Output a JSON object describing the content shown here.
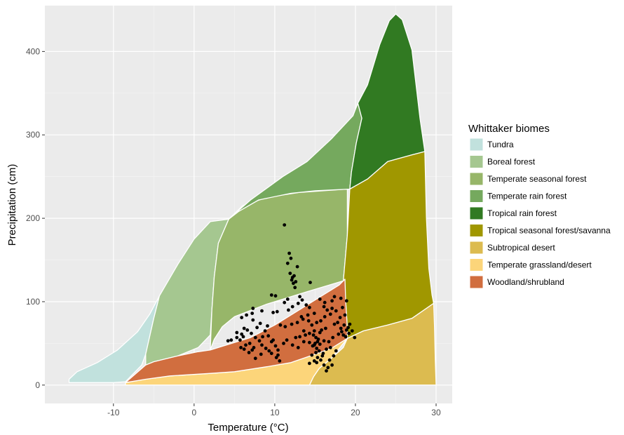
{
  "chart_data": {
    "type": "scatter",
    "title": "",
    "xlabel": "Temperature (°C)",
    "ylabel": "Precipitation (cm)",
    "xlim": [
      -18.5,
      32
    ],
    "ylim": [
      -22,
      455
    ],
    "x_ticks": [
      -10,
      0,
      10,
      20,
      30
    ],
    "y_ticks": [
      0,
      100,
      200,
      300,
      400
    ],
    "x_tick_labels": [
      "-10",
      "0",
      "10",
      "20",
      "30"
    ],
    "y_tick_labels": [
      "0",
      "100",
      "200",
      "300",
      "400"
    ],
    "grid": true,
    "background": "#EBEBEB",
    "legend": {
      "title": "Whittaker biomes",
      "placement": "right",
      "entries": [
        {
          "name": "Tundra",
          "color": "#C1E1DD"
        },
        {
          "name": "Boreal forest",
          "color": "#A5C790"
        },
        {
          "name": "Temperate seasonal forest",
          "color": "#97B669"
        },
        {
          "name": "Temperate rain forest",
          "color": "#75A95E"
        },
        {
          "name": "Tropical rain forest",
          "color": "#317A22"
        },
        {
          "name": "Tropical seasonal forest/savanna",
          "color": "#A09700"
        },
        {
          "name": "Subtropical desert",
          "color": "#DCBB50"
        },
        {
          "name": "Temperate grassland/desert",
          "color": "#FCD57A"
        },
        {
          "name": "Woodland/shrubland",
          "color": "#D16E3F"
        }
      ]
    },
    "biomes": [
      {
        "name": "Tundra",
        "color": "#C1E1DD",
        "points": [
          [
            -15.5,
            7
          ],
          [
            -14.5,
            16
          ],
          [
            -12,
            27
          ],
          [
            -9.5,
            42
          ],
          [
            -7,
            64
          ],
          [
            -5.5,
            85
          ],
          [
            -4.3,
            107
          ],
          [
            -5,
            80
          ],
          [
            -6,
            37
          ],
          [
            -6.5,
            24
          ],
          [
            -8.5,
            4
          ],
          [
            -10,
            3
          ],
          [
            -13,
            3
          ],
          [
            -15.5,
            3
          ]
        ]
      },
      {
        "name": "Boreal forest",
        "color": "#A5C790",
        "points": [
          [
            -4.3,
            107
          ],
          [
            -2,
            145
          ],
          [
            0,
            175
          ],
          [
            2,
            196
          ],
          [
            4.3,
            199
          ],
          [
            3,
            170
          ],
          [
            2.5,
            130
          ],
          [
            2.2,
            90
          ],
          [
            2,
            60
          ],
          [
            0.5,
            45
          ],
          [
            -2,
            35
          ],
          [
            -5,
            28
          ],
          [
            -6,
            24
          ],
          [
            -6,
            37
          ],
          [
            -5,
            80
          ]
        ]
      },
      {
        "name": "Temperate seasonal forest",
        "color": "#97B669",
        "points": [
          [
            4.3,
            199
          ],
          [
            6,
            215
          ],
          [
            9,
            225
          ],
          [
            13,
            231
          ],
          [
            19,
            235
          ],
          [
            19,
            180
          ],
          [
            18.5,
            125
          ],
          [
            14,
            112
          ],
          [
            9,
            97
          ],
          [
            5,
            82
          ],
          [
            3.5,
            70
          ],
          [
            2.5,
            55
          ],
          [
            2,
            42
          ],
          [
            2.2,
            90
          ],
          [
            2.5,
            130
          ],
          [
            3,
            170
          ]
        ]
      },
      {
        "name": "Temperate rain forest",
        "color": "#75A95E",
        "points": [
          [
            4.3,
            199
          ],
          [
            7,
            222
          ],
          [
            11,
            250
          ],
          [
            14,
            268
          ],
          [
            17,
            295
          ],
          [
            19.7,
            323
          ],
          [
            20.3,
            338
          ],
          [
            20.8,
            320
          ],
          [
            20.1,
            290
          ],
          [
            19.5,
            255
          ],
          [
            19.3,
            235
          ],
          [
            15,
            233
          ],
          [
            12,
            230
          ],
          [
            8,
            222
          ],
          [
            5.5,
            208
          ]
        ]
      },
      {
        "name": "Tropical rain forest",
        "color": "#317A22",
        "points": [
          [
            20.3,
            338
          ],
          [
            21.5,
            360
          ],
          [
            23,
            408
          ],
          [
            24.2,
            437
          ],
          [
            25,
            445
          ],
          [
            25.8,
            438
          ],
          [
            27,
            402
          ],
          [
            28,
            320
          ],
          [
            28.6,
            280
          ],
          [
            27,
            276
          ],
          [
            24,
            268
          ],
          [
            21.5,
            247
          ],
          [
            19.3,
            235
          ],
          [
            19.5,
            255
          ],
          [
            20.1,
            290
          ],
          [
            20.8,
            320
          ]
        ]
      },
      {
        "name": "Tropical seasonal forest/savanna",
        "color": "#A09700",
        "points": [
          [
            19.3,
            235
          ],
          [
            21.5,
            247
          ],
          [
            24,
            268
          ],
          [
            27,
            276
          ],
          [
            28.6,
            280
          ],
          [
            28.8,
            200
          ],
          [
            29.1,
            140
          ],
          [
            29.5,
            108
          ],
          [
            29.7,
            98
          ],
          [
            27,
            80
          ],
          [
            24,
            72
          ],
          [
            21,
            65
          ],
          [
            19,
            56
          ],
          [
            19,
            68
          ],
          [
            18.8,
            100
          ],
          [
            18.5,
            125
          ],
          [
            19,
            180
          ]
        ]
      },
      {
        "name": "Subtropical desert",
        "color": "#DCBB50",
        "points": [
          [
            19,
            56
          ],
          [
            21,
            65
          ],
          [
            24,
            72
          ],
          [
            27,
            80
          ],
          [
            29.7,
            98
          ],
          [
            29.8,
            70
          ],
          [
            29.9,
            30
          ],
          [
            30,
            0
          ],
          [
            20,
            0
          ],
          [
            15.5,
            0
          ],
          [
            14.3,
            0
          ],
          [
            14.8,
            10
          ],
          [
            15.5,
            20
          ],
          [
            17,
            32
          ],
          [
            18.5,
            45
          ]
        ]
      },
      {
        "name": "Temperate grassland/desert",
        "color": "#FCD57A",
        "points": [
          [
            -8.5,
            3
          ],
          [
            -6,
            7
          ],
          [
            -3,
            11
          ],
          [
            2,
            14
          ],
          [
            5,
            16
          ],
          [
            9,
            22
          ],
          [
            12,
            27
          ],
          [
            15,
            37
          ],
          [
            17,
            44
          ],
          [
            19,
            56
          ],
          [
            17,
            32
          ],
          [
            15.5,
            20
          ],
          [
            14.8,
            10
          ],
          [
            14.3,
            0
          ],
          [
            10,
            0
          ],
          [
            5,
            0
          ],
          [
            0,
            0
          ],
          [
            -8.5,
            0
          ]
        ]
      },
      {
        "name": "Woodland/shrubland",
        "color": "#D16E3F",
        "points": [
          [
            -8.5,
            3
          ],
          [
            -6,
            24
          ],
          [
            -5,
            28
          ],
          [
            -2,
            35
          ],
          [
            0.5,
            40
          ],
          [
            2,
            42
          ],
          [
            4,
            48
          ],
          [
            7,
            57
          ],
          [
            10,
            72
          ],
          [
            13,
            90
          ],
          [
            15.5,
            105
          ],
          [
            18,
            120
          ],
          [
            18.7,
            127
          ],
          [
            18.8,
            100
          ],
          [
            19,
            68
          ],
          [
            19,
            56
          ],
          [
            17,
            44
          ],
          [
            15,
            37
          ],
          [
            12,
            27
          ],
          [
            9,
            22
          ],
          [
            5,
            16
          ],
          [
            2,
            14
          ],
          [
            -3,
            11
          ],
          [
            -6,
            7
          ]
        ]
      }
    ],
    "points": [
      [
        11.2,
        192
      ],
      [
        11.8,
        158
      ],
      [
        12.0,
        152
      ],
      [
        11.6,
        146
      ],
      [
        12.8,
        142
      ],
      [
        11.9,
        134
      ],
      [
        12.4,
        131
      ],
      [
        12.2,
        129
      ],
      [
        12.1,
        126
      ],
      [
        12.6,
        124
      ],
      [
        12.3,
        122
      ],
      [
        14.4,
        123
      ],
      [
        12.5,
        117
      ],
      [
        13.1,
        106
      ],
      [
        9.6,
        108
      ],
      [
        10.1,
        107
      ],
      [
        11.2,
        99
      ],
      [
        12.2,
        94
      ],
      [
        13.4,
        102
      ],
      [
        13.9,
        96
      ],
      [
        15.6,
        103
      ],
      [
        16.2,
        99
      ],
      [
        17.1,
        101
      ],
      [
        17.4,
        106
      ],
      [
        16.1,
        94
      ],
      [
        14.3,
        93
      ],
      [
        12.9,
        98
      ],
      [
        11.6,
        103
      ],
      [
        10.3,
        88
      ],
      [
        11.7,
        90
      ],
      [
        6.5,
        84
      ],
      [
        5.9,
        81
      ],
      [
        7.3,
        78
      ],
      [
        8.2,
        74
      ],
      [
        9.1,
        71
      ],
      [
        7.2,
        86
      ],
      [
        8.4,
        89
      ],
      [
        7.3,
        92
      ],
      [
        9.8,
        87
      ],
      [
        5.3,
        63
      ],
      [
        6.2,
        68
      ],
      [
        6.1,
        58
      ],
      [
        5.7,
        54
      ],
      [
        4.6,
        54
      ],
      [
        4.2,
        53
      ],
      [
        5.3,
        57
      ],
      [
        5.9,
        61
      ],
      [
        6.6,
        66
      ],
      [
        7.1,
        62
      ],
      [
        7.6,
        57
      ],
      [
        8.1,
        53
      ],
      [
        8.4,
        48
      ],
      [
        8.9,
        44
      ],
      [
        9.3,
        41
      ],
      [
        9.6,
        38
      ],
      [
        10.4,
        36
      ],
      [
        10.2,
        33
      ],
      [
        10.6,
        29
      ],
      [
        8.3,
        37
      ],
      [
        7.4,
        45
      ],
      [
        6.9,
        50
      ],
      [
        6.4,
        48
      ],
      [
        5.8,
        45
      ],
      [
        6.2,
        43
      ],
      [
        7.2,
        42
      ],
      [
        6.8,
        39
      ],
      [
        7.6,
        32
      ],
      [
        8.5,
        58
      ],
      [
        9.2,
        59
      ],
      [
        9.6,
        52
      ],
      [
        10.1,
        47
      ],
      [
        10.4,
        42
      ],
      [
        9.8,
        54
      ],
      [
        8.8,
        65
      ],
      [
        7.8,
        69
      ],
      [
        10.7,
        72
      ],
      [
        11.3,
        70
      ],
      [
        12.1,
        73
      ],
      [
        12.8,
        75
      ],
      [
        13.5,
        79
      ],
      [
        14.2,
        77
      ],
      [
        14.6,
        72
      ],
      [
        13.6,
        65
      ],
      [
        13.1,
        58
      ],
      [
        12.6,
        57
      ],
      [
        11.5,
        54
      ],
      [
        11.1,
        50
      ],
      [
        12.2,
        48
      ],
      [
        12.9,
        45
      ],
      [
        13.6,
        52
      ],
      [
        14.3,
        51
      ],
      [
        14.9,
        48
      ],
      [
        15.6,
        49
      ],
      [
        16.1,
        53
      ],
      [
        16.7,
        52
      ],
      [
        17.2,
        57
      ],
      [
        17.9,
        61
      ],
      [
        18.3,
        64
      ],
      [
        18.9,
        66
      ],
      [
        19.1,
        69
      ],
      [
        18.6,
        72
      ],
      [
        17.8,
        75
      ],
      [
        18.1,
        81
      ],
      [
        18.7,
        84
      ],
      [
        18.4,
        93
      ],
      [
        17.6,
        89
      ],
      [
        16.9,
        85
      ],
      [
        16.2,
        82
      ],
      [
        15.7,
        77
      ],
      [
        15.2,
        75
      ],
      [
        14.9,
        65
      ],
      [
        14.8,
        60
      ],
      [
        15.1,
        57
      ],
      [
        15.4,
        55
      ],
      [
        15.3,
        52
      ],
      [
        15.0,
        50
      ],
      [
        14.7,
        47
      ],
      [
        15.2,
        44
      ],
      [
        15.5,
        41
      ],
      [
        15.1,
        39
      ],
      [
        14.6,
        36
      ],
      [
        15.3,
        33
      ],
      [
        15.7,
        30
      ],
      [
        15.2,
        27
      ],
      [
        16.1,
        24
      ],
      [
        16.6,
        21
      ],
      [
        17.1,
        24
      ],
      [
        16.8,
        30
      ],
      [
        17.3,
        35
      ],
      [
        17.6,
        41
      ],
      [
        16.9,
        45
      ],
      [
        16.4,
        43
      ],
      [
        16.0,
        38
      ],
      [
        15.9,
        35
      ],
      [
        14.9,
        29
      ],
      [
        14.3,
        26
      ],
      [
        16.4,
        17
      ],
      [
        15.6,
        63
      ],
      [
        14.3,
        62
      ],
      [
        13.8,
        60
      ],
      [
        15.8,
        66
      ],
      [
        16.3,
        68
      ],
      [
        18.8,
        58
      ],
      [
        19.2,
        62
      ],
      [
        18.5,
        60
      ],
      [
        19.6,
        65
      ],
      [
        19.9,
        57
      ],
      [
        18.2,
        68
      ],
      [
        17.4,
        73
      ],
      [
        19.3,
        73
      ],
      [
        18.9,
        101
      ],
      [
        18.2,
        104
      ],
      [
        17.1,
        92
      ],
      [
        16.5,
        90
      ],
      [
        14.9,
        86
      ],
      [
        14.1,
        84
      ],
      [
        13.3,
        82
      ]
    ]
  }
}
